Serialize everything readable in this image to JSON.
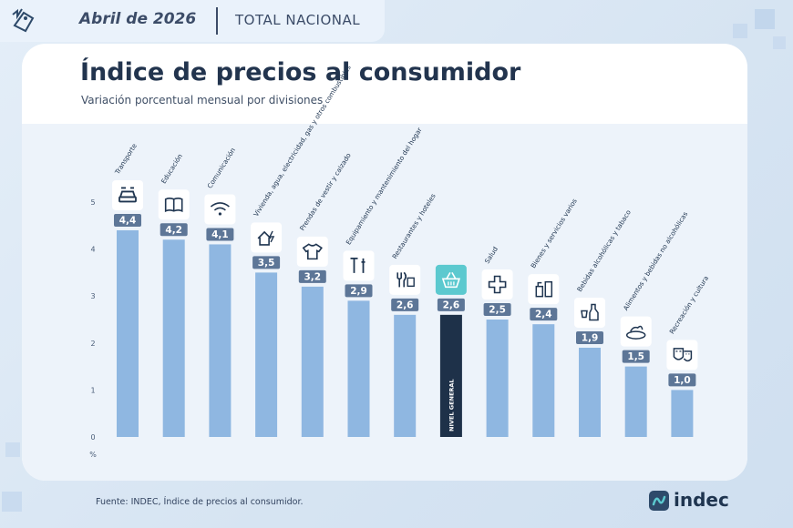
{
  "header": {
    "date": "Abril de 2026",
    "scope": "TOTAL NACIONAL"
  },
  "title": "Índice de precios al consumidor",
  "subtitle": "Variación porcentual mensual por divisiones",
  "footer": {
    "source": "Fuente: INDEC, Índice de precios al consumidor.",
    "brand": "indec"
  },
  "colors": {
    "bar": "#8fb7e1",
    "highlight_bar": "#1e3149",
    "highlight_icon_bg": "#5cc9cf",
    "label_bg": "#5d7697",
    "label_text": "#ffffff"
  },
  "chart_data": {
    "type": "bar",
    "ylabel": "%",
    "ylim": [
      0,
      5
    ],
    "yticks": [
      "0",
      "1",
      "2",
      "3",
      "4",
      "5"
    ],
    "grid": false,
    "legend": "none",
    "decimal_separator": ",",
    "categories": [
      "Transporte",
      "Educación",
      "Comunicación",
      "Vivienda, agua, electricidad, gas y otros combustibles",
      "Prendas de vestir y calzado",
      "Equipamiento y mantenimiento del hogar",
      "Restaurantes y hoteles",
      "NIVEL GENERAL",
      "Salud",
      "Bienes y servicios varios",
      "Bebidas alcohólicas y tabaco",
      "Alimentos y bebidas no alcohólicas",
      "Recreación y cultura"
    ],
    "value_labels": [
      "4,4",
      "4,2",
      "4,1",
      "3,5",
      "3,2",
      "2,9",
      "2,6",
      "2,6",
      "2,5",
      "2,4",
      "1,9",
      "1,5",
      "1,0"
    ],
    "values": [
      4.4,
      4.2,
      4.1,
      3.5,
      3.2,
      2.9,
      2.6,
      2.6,
      2.5,
      2.4,
      1.9,
      1.5,
      1.0
    ],
    "icons": [
      "car-icon",
      "book-icon",
      "wifi-icon",
      "house-icon",
      "tshirt-icon",
      "tools-icon",
      "fork-knife-icon",
      "basket-icon",
      "cross-icon",
      "hygiene-icon",
      "bottle-icon",
      "food-icon",
      "theater-icon"
    ],
    "highlight_index": 7
  }
}
